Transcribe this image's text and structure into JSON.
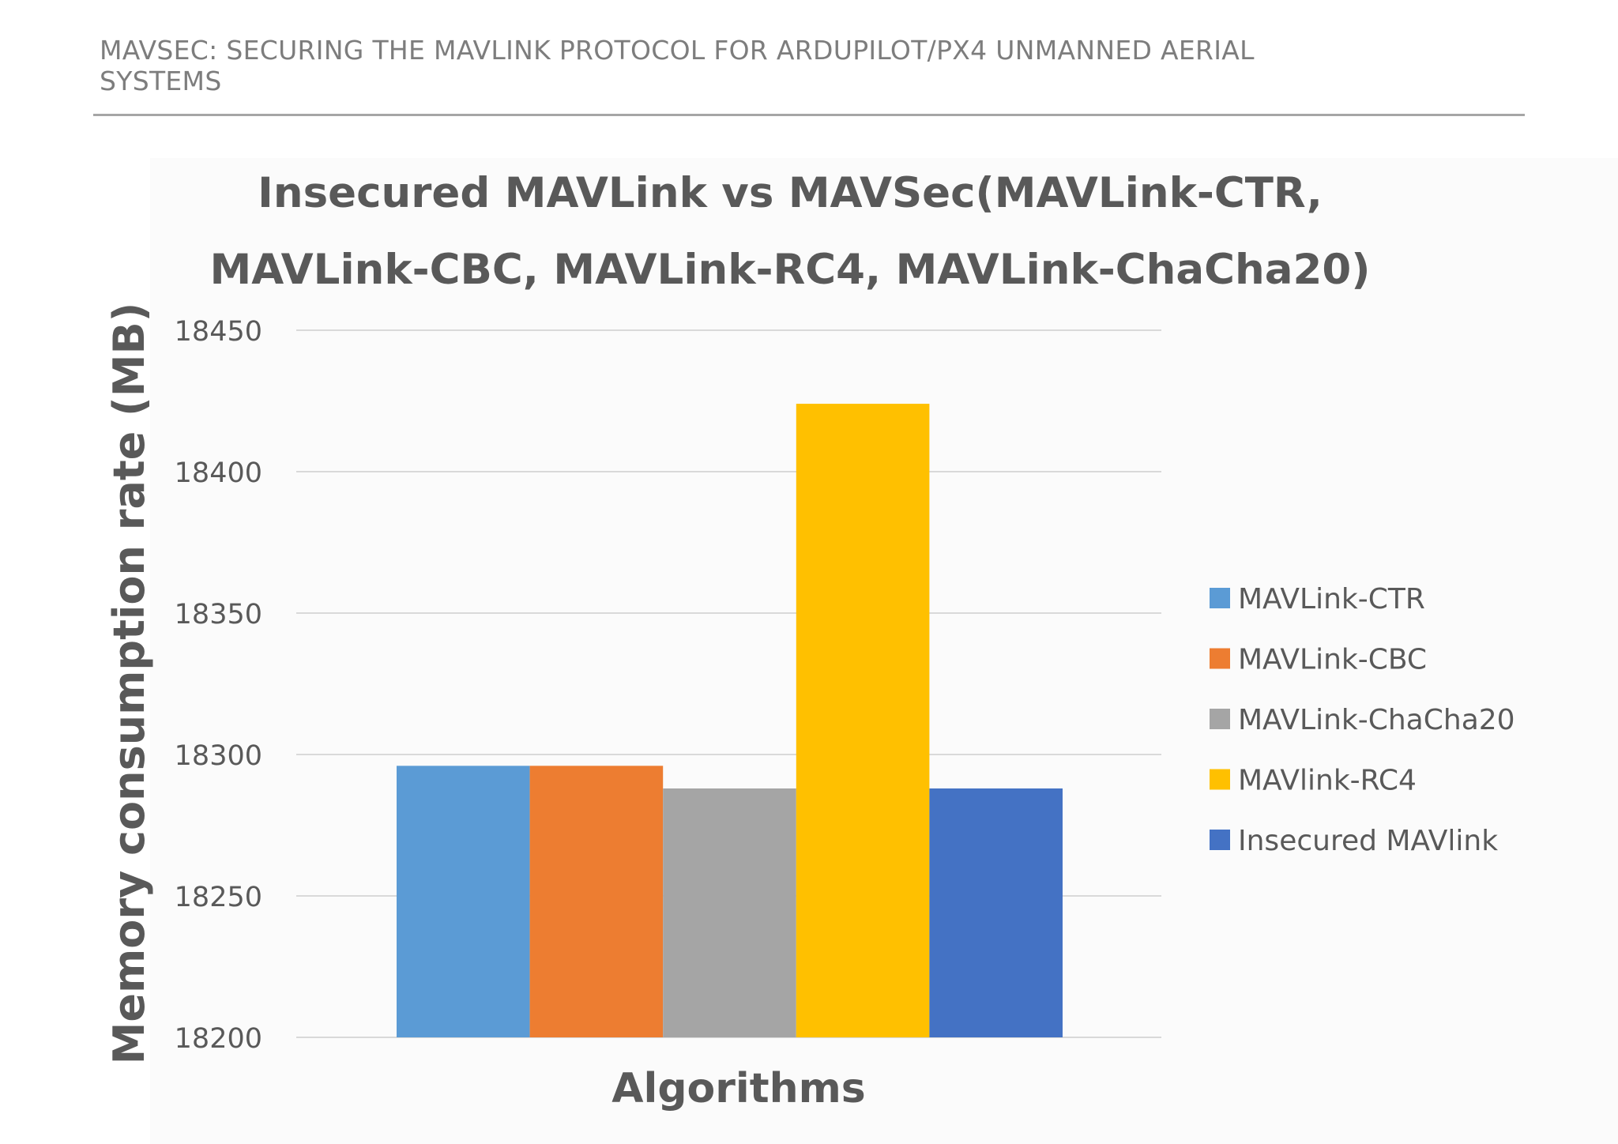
{
  "page_header": {
    "title": "MAVSEC: SECURING THE MAVLINK PROTOCOL FOR ARDUPILOT/PX4 UNMANNED AERIAL SYSTEMS"
  },
  "chart_data": {
    "type": "bar",
    "title_lines": [
      "Insecured MAVLink vs MAVSec(MAVLink-CTR,",
      "MAVLink-CBC, MAVLink-RC4, MAVLink-ChaCha20)"
    ],
    "xlabel": "Algorithms",
    "ylabel": "Memory consumption rate (MB)",
    "ylim": [
      18200,
      18450
    ],
    "yticks": [
      "18200",
      "18250",
      "18300",
      "18350",
      "18400",
      "18450"
    ],
    "grid": true,
    "legend_position": "right",
    "series": [
      {
        "name": "MAVLink-CTR",
        "value": 18296,
        "color": "#5b9bd5"
      },
      {
        "name": "MAVLink-CBC",
        "value": 18296,
        "color": "#ed7d31"
      },
      {
        "name": "MAVLink-ChaCha20",
        "value": 18288,
        "color": "#a5a5a5"
      },
      {
        "name": "MAVlink-RC4",
        "value": 18424,
        "color": "#ffc000"
      },
      {
        "name": "Insecured MAVlink",
        "value": 18288,
        "color": "#4472c4"
      }
    ]
  }
}
